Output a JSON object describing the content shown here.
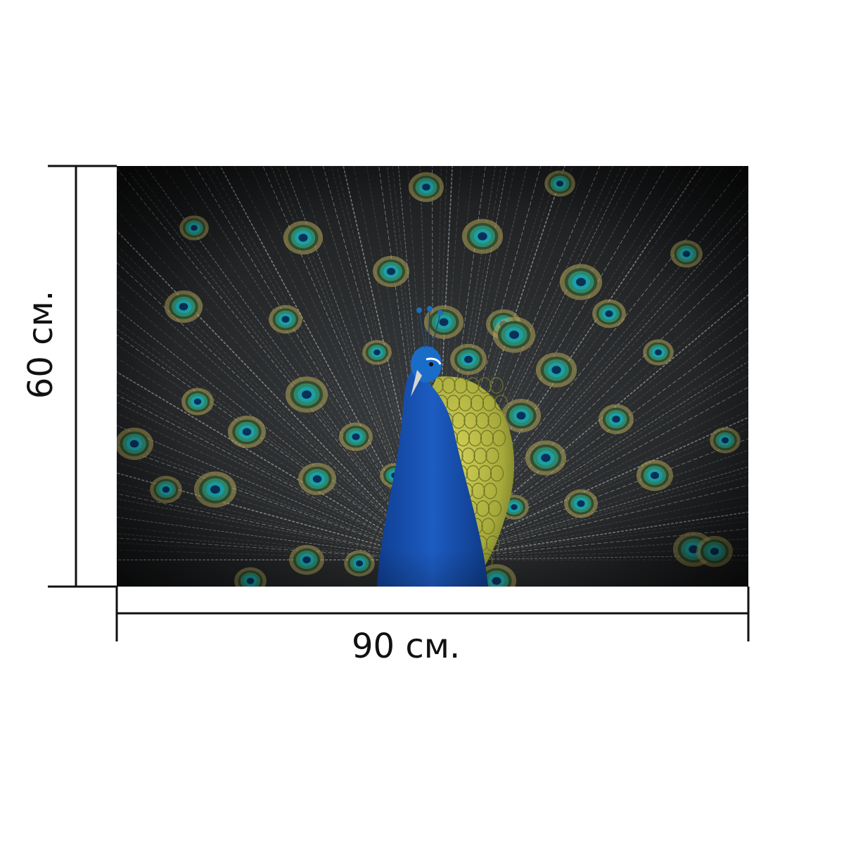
{
  "dimensions": {
    "height_label": "60 см.",
    "width_label": "90 см."
  },
  "photo": {
    "subject": "peacock-with-fanned-tail",
    "colors": {
      "background_dark": "#1b1d1f",
      "feather_shaft": "#c9cbc7",
      "eye_outer": "#b5a55a",
      "eye_ring": "#2f8a6d",
      "eye_inner": "#1a9fa8",
      "eye_pupil": "#0b2f55",
      "neck_blue": "#1c56b8",
      "breast_gold": "#b3b33e"
    }
  },
  "colors": {
    "dimension_line": "#111111",
    "page_background": "#ffffff"
  }
}
